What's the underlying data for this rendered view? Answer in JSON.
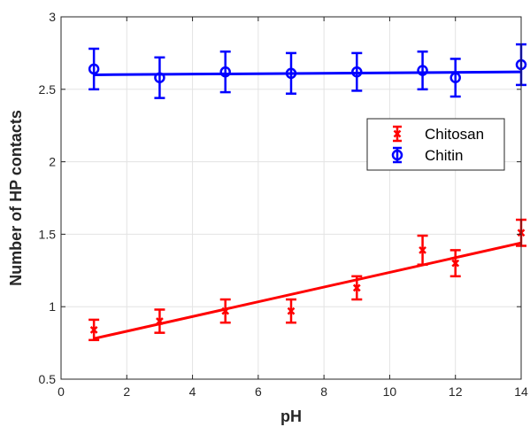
{
  "chart_data": {
    "type": "scatter",
    "xlabel": "pH",
    "ylabel": "Number of HP contacts",
    "xlim": [
      0,
      14
    ],
    "ylim": [
      0.5,
      3
    ],
    "xticks": [
      0,
      2,
      4,
      6,
      8,
      10,
      12,
      14
    ],
    "yticks": [
      0.5,
      1,
      1.5,
      2,
      2.5,
      3
    ],
    "xtick_labels": [
      "0",
      "2",
      "4",
      "6",
      "8",
      "10",
      "12",
      "14"
    ],
    "ytick_labels": [
      "0.5",
      "1",
      "1.5",
      "2",
      "2.5",
      "3"
    ],
    "grid": true,
    "legend_position": "upper-right",
    "series": [
      {
        "name": "Chitosan",
        "color": "#ff0000",
        "marker": "x",
        "x": [
          1,
          3,
          5,
          7,
          9,
          11,
          12,
          14
        ],
        "y": [
          0.84,
          0.9,
          0.97,
          0.97,
          1.13,
          1.39,
          1.3,
          1.51
        ],
        "err": [
          0.07,
          0.08,
          0.08,
          0.08,
          0.08,
          0.1,
          0.09,
          0.09
        ],
        "fit": {
          "x": [
            1,
            14
          ],
          "y": [
            0.78,
            1.44
          ]
        }
      },
      {
        "name": "Chitin",
        "color": "#0000ff",
        "marker": "o",
        "x": [
          1,
          3,
          5,
          7,
          9,
          11,
          12,
          14
        ],
        "y": [
          2.64,
          2.58,
          2.62,
          2.61,
          2.62,
          2.63,
          2.58,
          2.67
        ],
        "err": [
          0.14,
          0.14,
          0.14,
          0.14,
          0.13,
          0.13,
          0.13,
          0.14
        ],
        "fit": {
          "x": [
            1,
            14
          ],
          "y": [
            2.6,
            2.62
          ]
        }
      }
    ]
  }
}
